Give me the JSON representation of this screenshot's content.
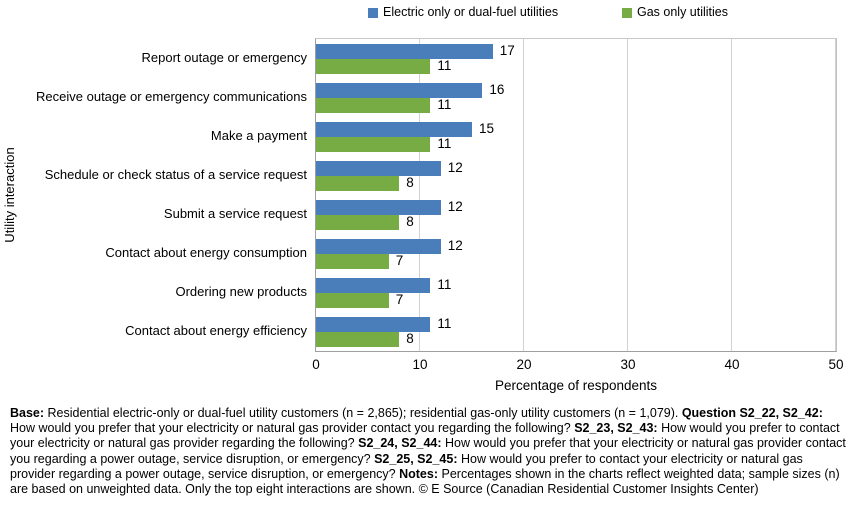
{
  "chart_data": {
    "type": "bar",
    "orientation": "horizontal",
    "categories": [
      "Report outage or emergency",
      "Receive outage or emergency communications",
      "Make a payment",
      "Schedule or check status of a service request",
      "Submit a service request",
      "Contact about energy consumption",
      "Ordering new products",
      "Contact about energy efficiency"
    ],
    "series": [
      {
        "name": "Electric only or dual-fuel utilities",
        "color": "#4a7ebb",
        "values": [
          17,
          16,
          15,
          12,
          12,
          12,
          11,
          11
        ]
      },
      {
        "name": "Gas only utilities",
        "color": "#77ab43",
        "values": [
          11,
          11,
          11,
          8,
          8,
          7,
          7,
          8
        ]
      }
    ],
    "xlabel": "Percentage of respondents",
    "ylabel": "Utility interaction",
    "xlim": [
      0,
      50
    ],
    "xticks": [
      0,
      10,
      20,
      30,
      40,
      50
    ],
    "grid": "vertical",
    "legend_position": "top",
    "data_labels": "outside-end"
  },
  "notes": {
    "segments": [
      {
        "bold": true,
        "text": "Base:"
      },
      {
        "bold": false,
        "text": " Residential electric-only or dual-fuel utility customers (n = 2,865); residential gas-only utility customers (n = 1,079). "
      },
      {
        "bold": true,
        "text": "Question S2_22, S2_42:"
      },
      {
        "bold": false,
        "text": " How would you prefer that your electricity or natural gas provider contact you regarding the following? "
      },
      {
        "bold": true,
        "text": "S2_23, S2_43:"
      },
      {
        "bold": false,
        "text": " How would you prefer to contact your electricity or natural gas provider regarding the following? "
      },
      {
        "bold": true,
        "text": "S2_24, S2_44:"
      },
      {
        "bold": false,
        "text": " How would you prefer that your electricity or natural gas provider contact you regarding a power outage, service disruption, or emergency? "
      },
      {
        "bold": true,
        "text": "S2_25, S2_45:"
      },
      {
        "bold": false,
        "text": " How would you prefer to contact your electricity or natural gas provider regarding a power outage, service disruption, or emergency? "
      },
      {
        "bold": true,
        "text": "Notes:"
      },
      {
        "bold": false,
        "text": " Percentages shown in the charts reflect weighted data; sample sizes (n) are based on unweighted data. Only the top eight interactions are shown. © E Source (Canadian Residential Customer Insights Center)"
      }
    ]
  }
}
